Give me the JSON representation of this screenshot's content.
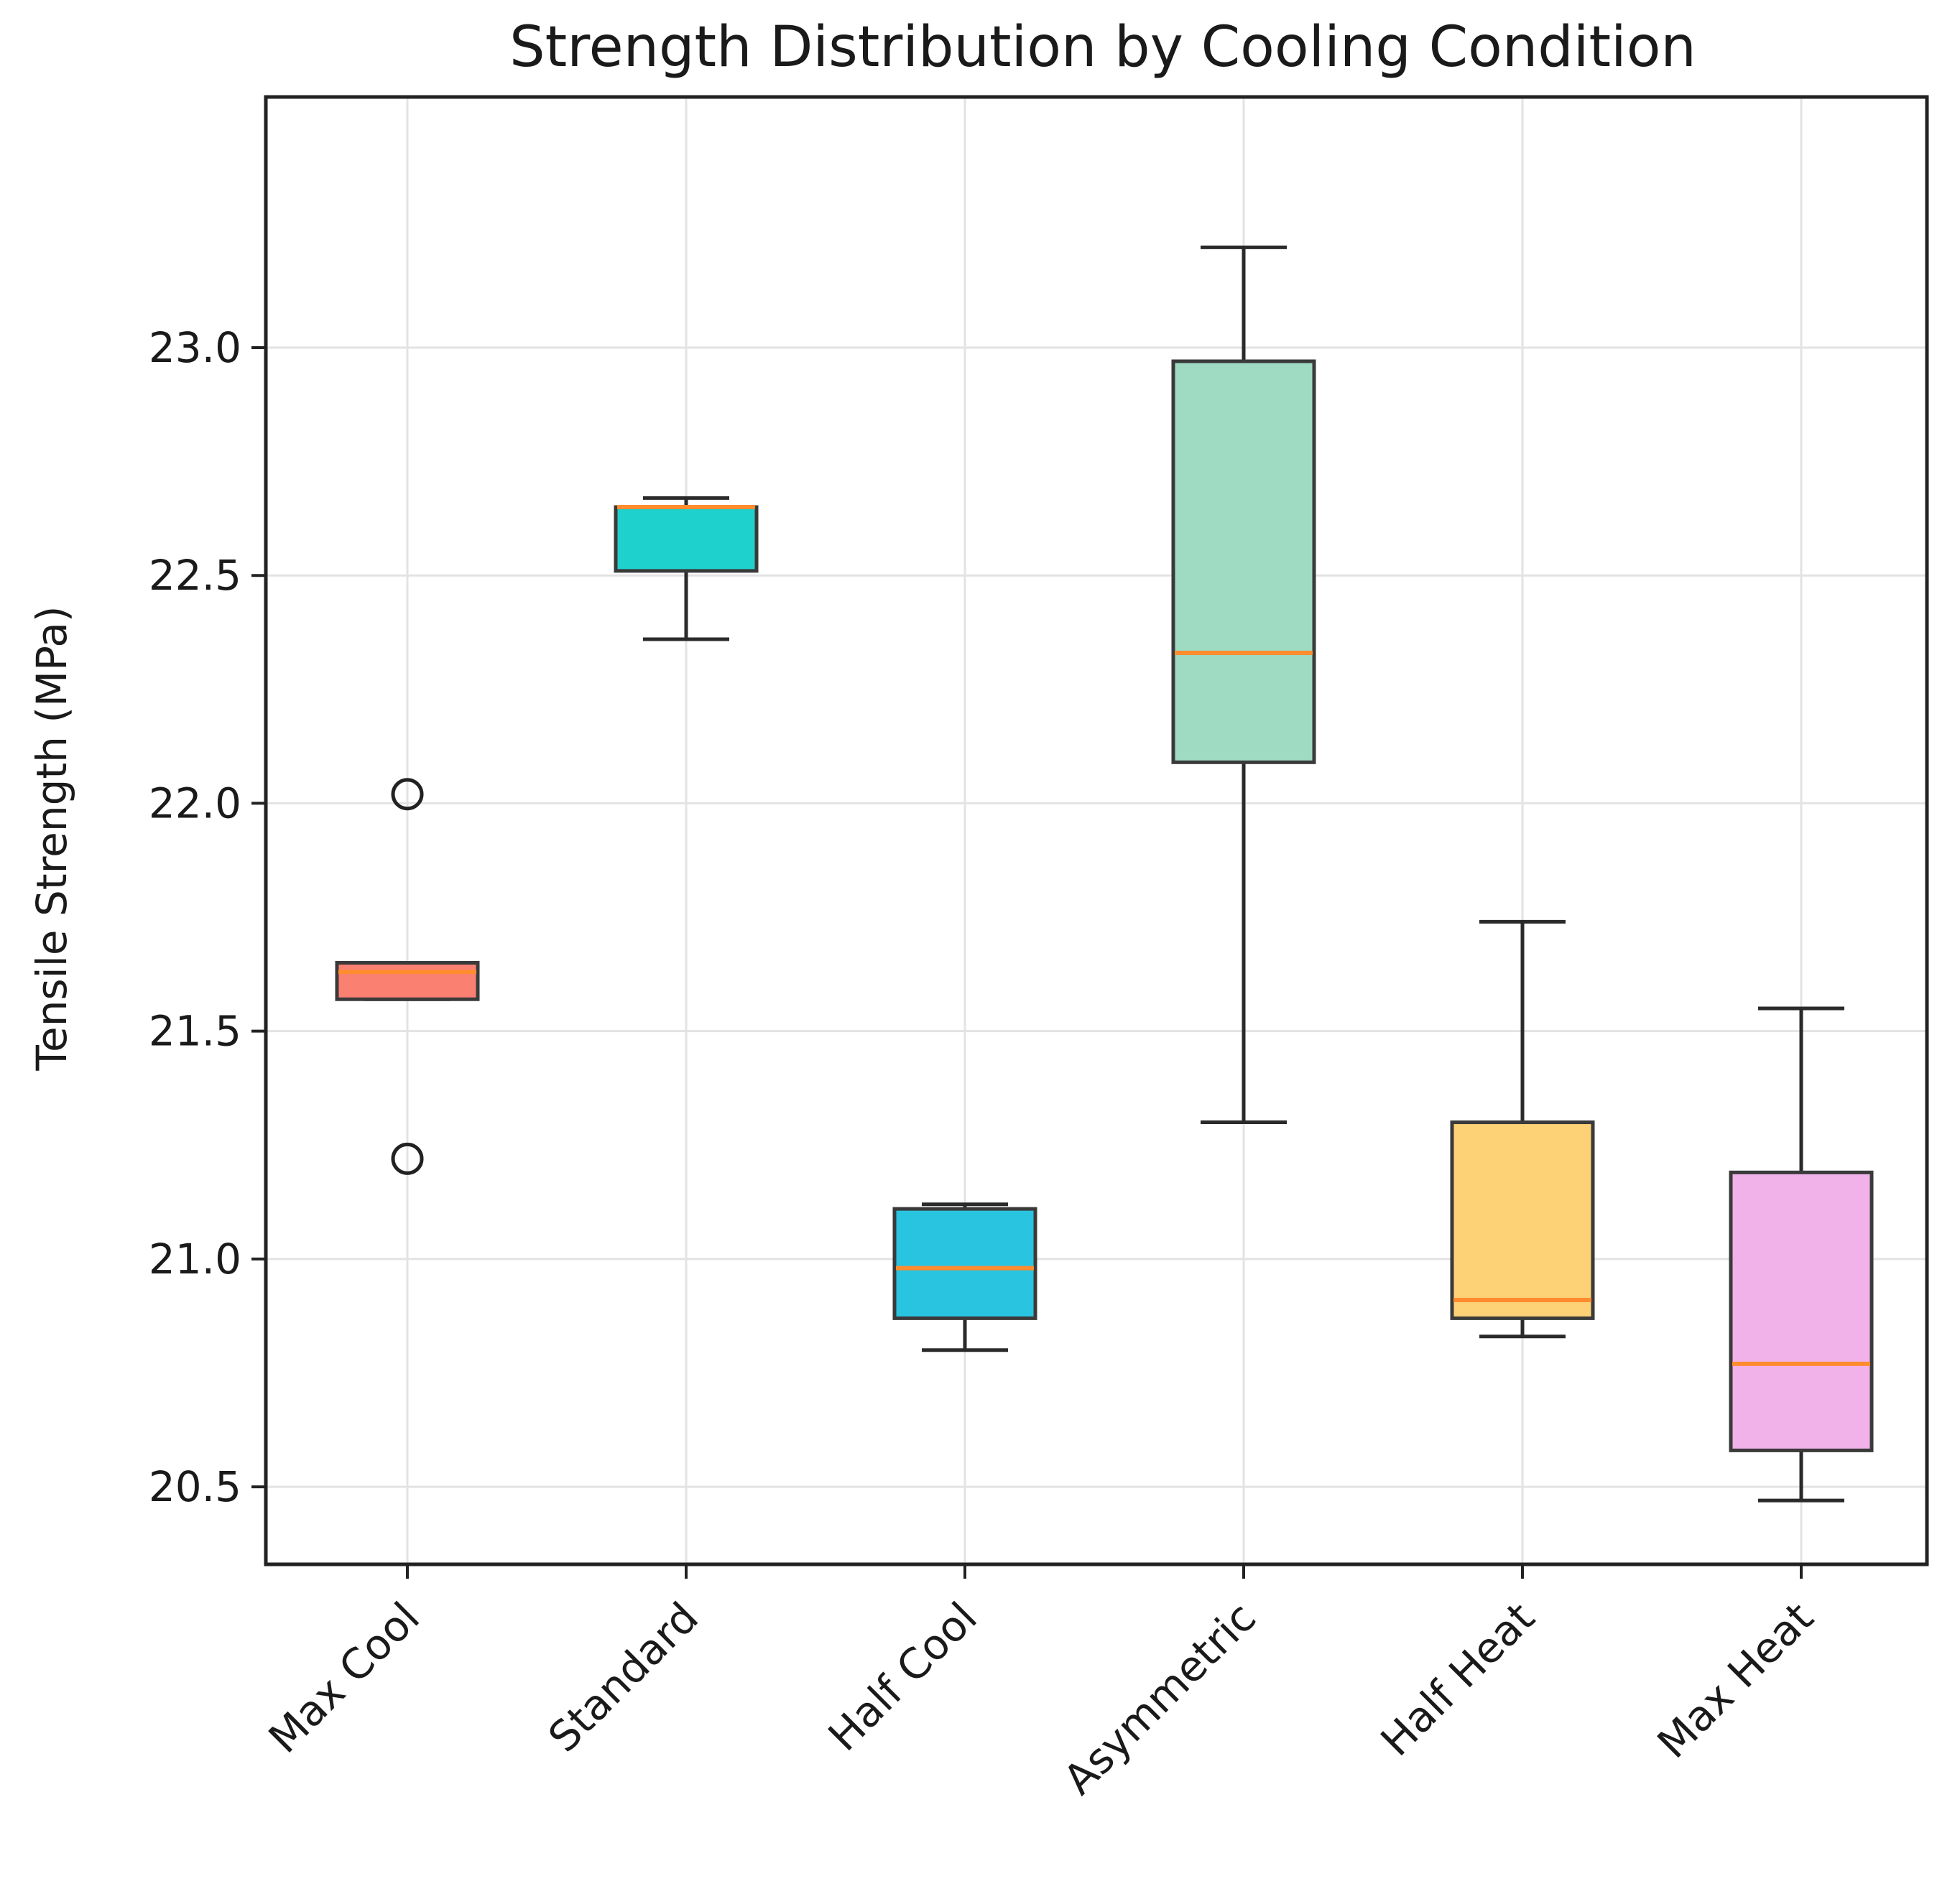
{
  "chart_data": {
    "type": "box",
    "title": "Strength Distribution by Cooling Condition",
    "xlabel": "",
    "ylabel": "Tensile Strength (MPa)",
    "ylim": [
      20.33,
      23.55
    ],
    "yticks": [
      "20.5",
      "21.0",
      "21.5",
      "22.0",
      "22.5",
      "23.0"
    ],
    "grid": true,
    "categories": [
      "Max Cool",
      "Standard",
      "Half Cool",
      "Asymmetric",
      "Half Heat",
      "Max Heat"
    ],
    "boxes": [
      {
        "category": "Max Cool",
        "whisker_low": 21.57,
        "q1": 21.57,
        "median": 21.63,
        "q3": 21.65,
        "whisker_high": 21.65,
        "outliers": [
          22.02,
          21.22
        ],
        "color": "#fa8072"
      },
      {
        "category": "Standard",
        "whisker_low": 22.36,
        "q1": 22.51,
        "median": 22.65,
        "q3": 22.65,
        "whisker_high": 22.67,
        "outliers": [],
        "color": "#1fd1cc"
      },
      {
        "category": "Half Cool",
        "whisker_low": 20.8,
        "q1": 20.87,
        "median": 20.98,
        "q3": 21.11,
        "whisker_high": 21.12,
        "outliers": [],
        "color": "#29c4df"
      },
      {
        "category": "Asymmetric",
        "whisker_low": 21.3,
        "q1": 22.09,
        "median": 22.33,
        "q3": 22.97,
        "whisker_high": 23.22,
        "outliers": [],
        "color": "#9fdbc2"
      },
      {
        "category": "Half Heat",
        "whisker_low": 20.83,
        "q1": 20.87,
        "median": 20.91,
        "q3": 21.3,
        "whisker_high": 21.74,
        "outliers": [],
        "color": "#fdd176"
      },
      {
        "category": "Max Heat",
        "whisker_low": 20.47,
        "q1": 20.58,
        "median": 20.77,
        "q3": 21.19,
        "whisker_high": 21.55,
        "outliers": [],
        "color": "#f1b1e9"
      }
    ],
    "median_color": "#ff8c2e"
  }
}
